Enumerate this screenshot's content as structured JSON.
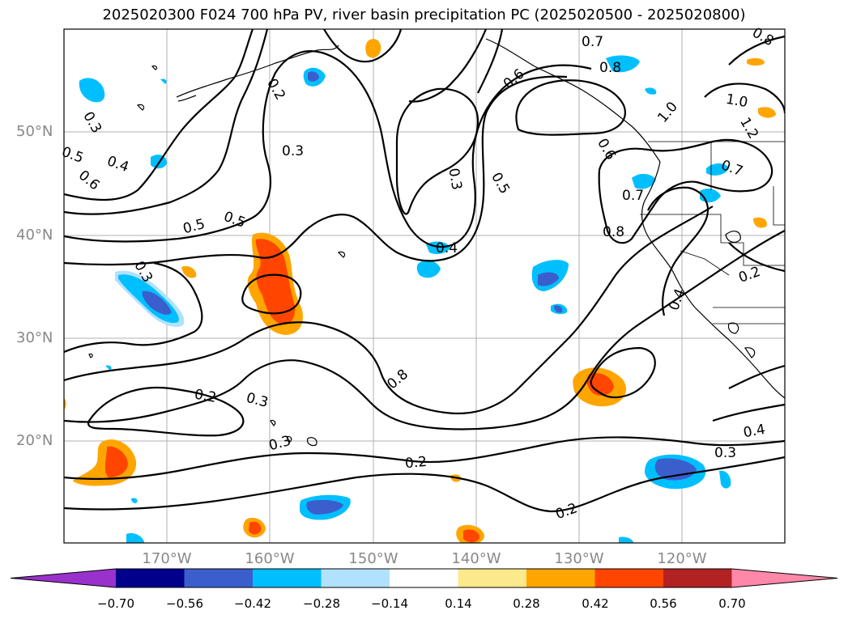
{
  "title": "2025020300 F024 700 hPa PV, river basin precipitation PC (2025020500 - 2025020800)",
  "lat_labels": [
    "50°N",
    "40°N",
    "30°N",
    "20°N"
  ],
  "lon_labels": [
    "170°W",
    "160°W",
    "150°W",
    "140°W",
    "130°W",
    "120°W"
  ],
  "colorbar": {
    "colors": [
      "#9932cc",
      "#00008b",
      "#3a5fcd",
      "#00bfff",
      "#b0e2ff",
      "#ffffff",
      "#fce98c",
      "#ffa500",
      "#ff4500",
      "#b22222",
      "#ff88aa"
    ],
    "tick_labels": [
      "−0.70",
      "−0.56",
      "−0.42",
      "−0.28",
      "−0.14",
      "0.14",
      "0.28",
      "0.42",
      "0.56",
      "0.70"
    ]
  },
  "contour_labels": [
    "0.3",
    "0.2",
    "0.3",
    "0.5",
    "0.6",
    "0.4",
    "0.5",
    "0.5",
    "0.3",
    "0.3",
    "0.4",
    "0.5",
    "0.2",
    "0.3",
    "0.3",
    "0.2",
    "0.2",
    "0.7",
    "0.8",
    "0.6",
    "0.8",
    "1.0",
    "1.0",
    "1.2",
    "0.6",
    "0.7",
    "0.7",
    "0.8",
    "0.2",
    "0.4",
    "0.4",
    "0.3",
    "0.8"
  ]
}
